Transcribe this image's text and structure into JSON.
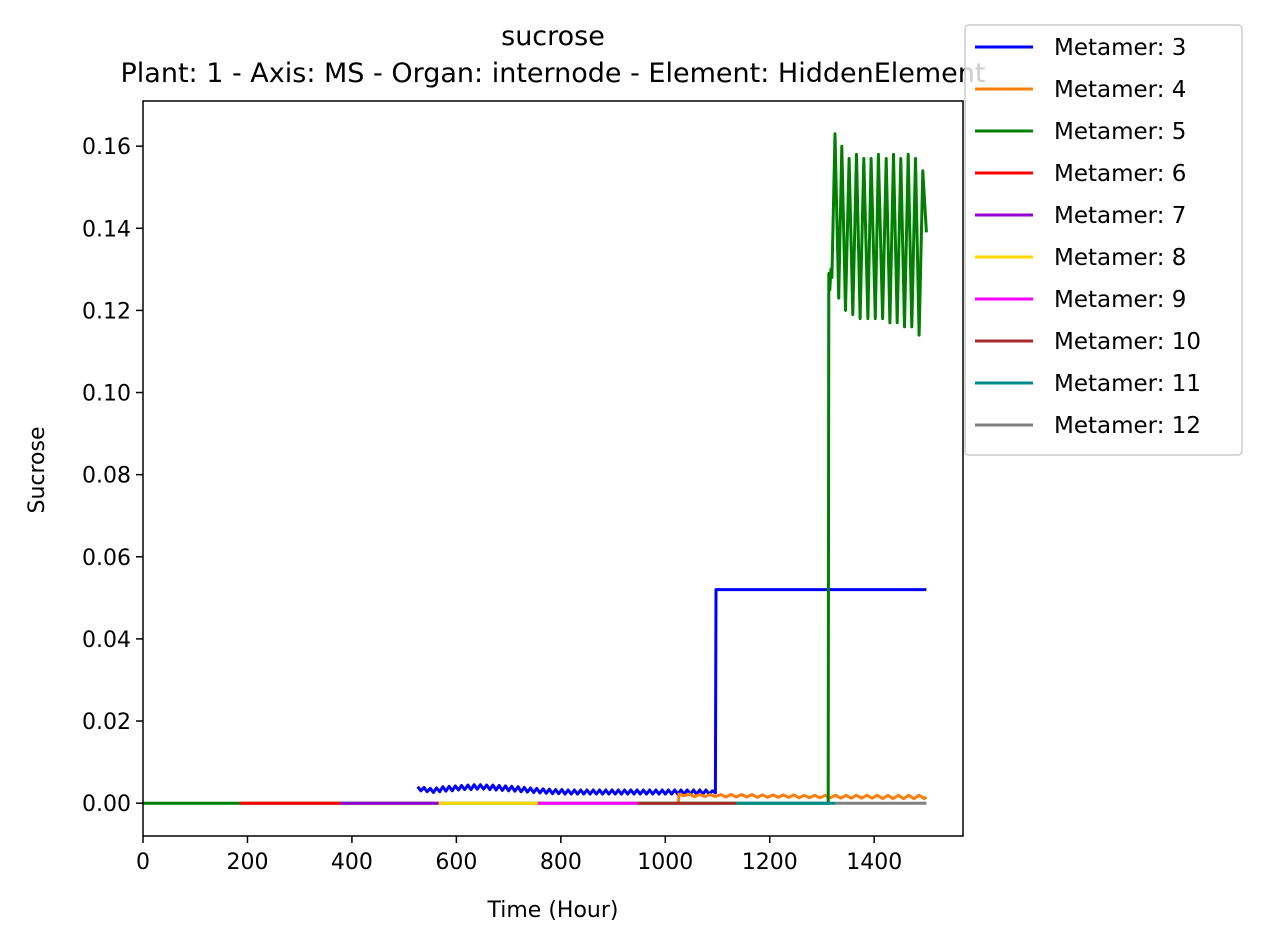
{
  "chart_data": {
    "type": "line",
    "title": "sucrose",
    "subtitle": "Plant: 1 - Axis: MS - Organ: internode - Element: HiddenElement",
    "xlabel": "Time (Hour)",
    "ylabel": "Sucrose",
    "xlim": [
      0,
      1570
    ],
    "ylim": [
      -0.008,
      0.171
    ],
    "xticks": [
      0,
      200,
      400,
      600,
      800,
      1000,
      1200,
      1400
    ],
    "yticks": [
      0.0,
      0.02,
      0.04,
      0.06,
      0.08,
      0.1,
      0.12,
      0.14,
      0.16
    ],
    "ytick_labels": [
      "0.00",
      "0.02",
      "0.04",
      "0.06",
      "0.08",
      "0.10",
      "0.12",
      "0.14",
      "0.16"
    ],
    "grid": false,
    "legend_position": "upper right, outside plot",
    "series": [
      {
        "name": "Metamer: 3",
        "color": "#0000ff",
        "x": [
          526,
          532,
          538,
          544,
          550,
          556,
          562,
          568,
          574,
          580,
          586,
          592,
          598,
          604,
          610,
          616,
          622,
          628,
          634,
          640,
          646,
          652,
          658,
          664,
          670,
          676,
          682,
          688,
          694,
          700,
          706,
          712,
          718,
          724,
          730,
          736,
          742,
          748,
          754,
          760,
          766,
          772,
          778,
          784,
          790,
          796,
          802,
          808,
          814,
          820,
          826,
          832,
          838,
          844,
          850,
          856,
          862,
          868,
          874,
          880,
          886,
          892,
          898,
          904,
          910,
          916,
          922,
          928,
          934,
          940,
          946,
          952,
          958,
          964,
          970,
          976,
          982,
          988,
          994,
          1000,
          1006,
          1012,
          1018,
          1024,
          1030,
          1036,
          1042,
          1048,
          1054,
          1060,
          1066,
          1072,
          1078,
          1084,
          1090,
          1096,
          1097,
          1500
        ],
        "y": [
          0.004,
          0.003,
          0.0038,
          0.0028,
          0.0036,
          0.0026,
          0.0037,
          0.0028,
          0.004,
          0.0029,
          0.0041,
          0.003,
          0.0042,
          0.0032,
          0.0043,
          0.0033,
          0.0044,
          0.0033,
          0.0045,
          0.0034,
          0.0045,
          0.0034,
          0.0044,
          0.0033,
          0.0044,
          0.0032,
          0.0043,
          0.0031,
          0.0042,
          0.003,
          0.0041,
          0.0029,
          0.004,
          0.0028,
          0.0038,
          0.0027,
          0.0037,
          0.0026,
          0.0036,
          0.0025,
          0.0035,
          0.0024,
          0.0034,
          0.0023,
          0.0033,
          0.0023,
          0.0033,
          0.0022,
          0.0032,
          0.0022,
          0.0032,
          0.0022,
          0.0032,
          0.0022,
          0.0032,
          0.0022,
          0.0032,
          0.0022,
          0.0032,
          0.0022,
          0.0032,
          0.0022,
          0.0032,
          0.0022,
          0.0032,
          0.0022,
          0.0032,
          0.0022,
          0.0032,
          0.0022,
          0.0032,
          0.0022,
          0.0032,
          0.0022,
          0.0032,
          0.0022,
          0.0032,
          0.0022,
          0.0032,
          0.0022,
          0.0032,
          0.0022,
          0.0032,
          0.0022,
          0.0032,
          0.0022,
          0.0032,
          0.0022,
          0.0032,
          0.0022,
          0.0032,
          0.0022,
          0.0032,
          0.0022,
          0.003,
          0.0025,
          0.052,
          0.052
        ]
      },
      {
        "name": "Metamer: 4",
        "color": "#ff7f0e",
        "x": [
          1025,
          1026,
          1036,
          1046,
          1056,
          1066,
          1076,
          1086,
          1096,
          1106,
          1116,
          1126,
          1136,
          1146,
          1156,
          1166,
          1176,
          1186,
          1196,
          1206,
          1216,
          1226,
          1236,
          1246,
          1256,
          1266,
          1276,
          1286,
          1296,
          1306,
          1316,
          1326,
          1336,
          1346,
          1356,
          1366,
          1376,
          1386,
          1396,
          1406,
          1416,
          1426,
          1436,
          1446,
          1456,
          1466,
          1476,
          1486,
          1496,
          1500
        ],
        "y": [
          0.0,
          0.0022,
          0.0018,
          0.0022,
          0.0016,
          0.0021,
          0.0016,
          0.0021,
          0.0016,
          0.0021,
          0.0015,
          0.0021,
          0.0015,
          0.0021,
          0.0015,
          0.0021,
          0.0014,
          0.002,
          0.0014,
          0.002,
          0.0014,
          0.002,
          0.0014,
          0.002,
          0.0013,
          0.0019,
          0.0013,
          0.0019,
          0.0013,
          0.0019,
          0.0013,
          0.0019,
          0.0012,
          0.0019,
          0.0012,
          0.0019,
          0.0012,
          0.0019,
          0.0012,
          0.0019,
          0.0011,
          0.0019,
          0.0011,
          0.0019,
          0.0011,
          0.0019,
          0.0011,
          0.0019,
          0.0011,
          0.0015
        ]
      },
      {
        "name": "Metamer: 5",
        "color": "#008000",
        "x": [
          0,
          186,
          1312,
          1313,
          1315,
          1317,
          1319,
          1325,
          1332,
          1338,
          1345,
          1352,
          1359,
          1366,
          1373,
          1380,
          1388,
          1394,
          1402,
          1408,
          1416,
          1423,
          1430,
          1437,
          1444,
          1451,
          1458,
          1465,
          1472,
          1479,
          1486,
          1493,
          1500
        ],
        "y": [
          0.0,
          0.0,
          0.0,
          0.129,
          0.125,
          0.13,
          0.128,
          0.163,
          0.123,
          0.16,
          0.12,
          0.157,
          0.119,
          0.158,
          0.118,
          0.157,
          0.118,
          0.157,
          0.118,
          0.158,
          0.118,
          0.157,
          0.117,
          0.158,
          0.117,
          0.157,
          0.116,
          0.158,
          0.116,
          0.157,
          0.114,
          0.154,
          0.139
        ]
      },
      {
        "name": "Metamer: 6",
        "color": "#ff0000",
        "x": [
          186,
          378
        ],
        "y": [
          0.0,
          0.0
        ]
      },
      {
        "name": "Metamer: 7",
        "color": "#9400d3",
        "x": [
          378,
          566
        ],
        "y": [
          0.0,
          0.0
        ]
      },
      {
        "name": "Metamer: 8",
        "color": "#ffd700",
        "x": [
          566,
          756
        ],
        "y": [
          0.0,
          0.0
        ]
      },
      {
        "name": "Metamer: 9",
        "color": "#ff00ff",
        "x": [
          756,
          948
        ],
        "y": [
          0.0,
          0.0
        ]
      },
      {
        "name": "Metamer: 10",
        "color": "#a52a2a",
        "x": [
          948,
          1136
        ],
        "y": [
          0.0,
          0.0
        ]
      },
      {
        "name": "Metamer: 11",
        "color": "#008b8b",
        "x": [
          1136,
          1326
        ],
        "y": [
          0.0,
          0.0
        ]
      },
      {
        "name": "Metamer: 12",
        "color": "#808080",
        "x": [
          1326,
          1500
        ],
        "y": [
          0.0,
          0.0
        ]
      }
    ]
  }
}
